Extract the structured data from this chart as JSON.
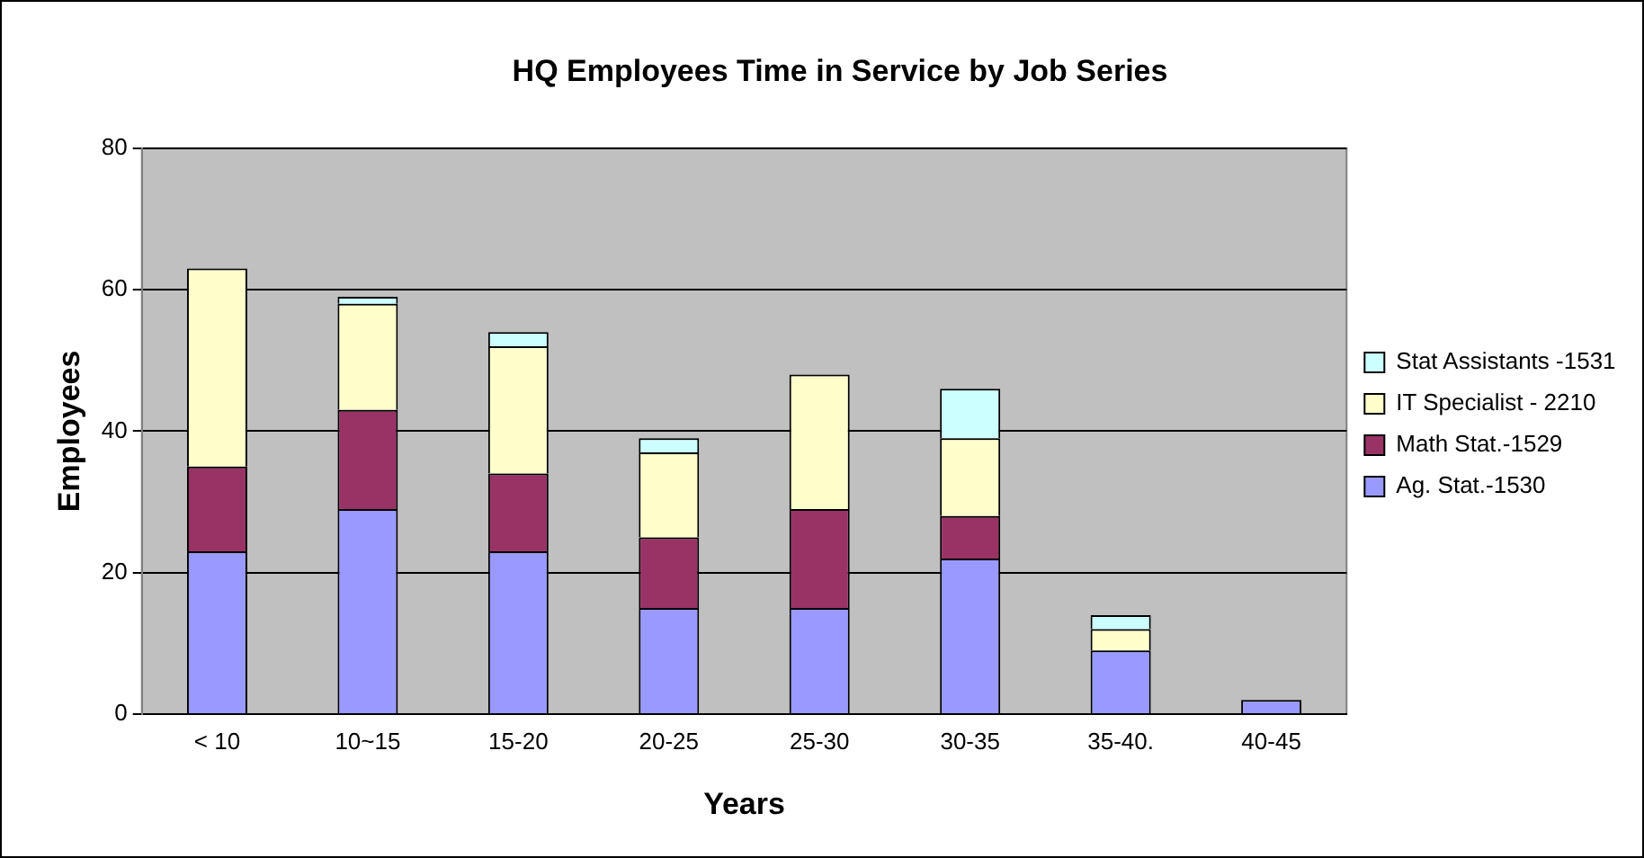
{
  "chart_data": {
    "type": "bar",
    "stacked": true,
    "title": "HQ Employees Time in Service by Job Series",
    "xlabel": "Years",
    "ylabel": "Employees",
    "categories": [
      "< 10",
      "10~15",
      "15-20",
      "20-25",
      "25-30",
      "30-35",
      "35-40.",
      "40-45"
    ],
    "series": [
      {
        "name": "Ag. Stat.-1530",
        "color": "#9999ff",
        "values": [
          23,
          29,
          23,
          15,
          15,
          22,
          9,
          2
        ]
      },
      {
        "name": "Math Stat.-1529",
        "color": "#993366",
        "values": [
          12,
          14,
          11,
          10,
          14,
          6,
          0,
          0
        ]
      },
      {
        "name": "IT Specialist - 2210",
        "color": "#ffffcc",
        "values": [
          28,
          15,
          18,
          12,
          19,
          11,
          3,
          0
        ]
      },
      {
        "name": "Stat Assistants -1531",
        "color": "#ccffff",
        "values": [
          0,
          1,
          2,
          2,
          0,
          7,
          2,
          0
        ]
      }
    ],
    "ylim": [
      0,
      80
    ],
    "yticks": [
      0,
      20,
      40,
      60,
      80
    ],
    "grid": "y",
    "legend": "right"
  }
}
